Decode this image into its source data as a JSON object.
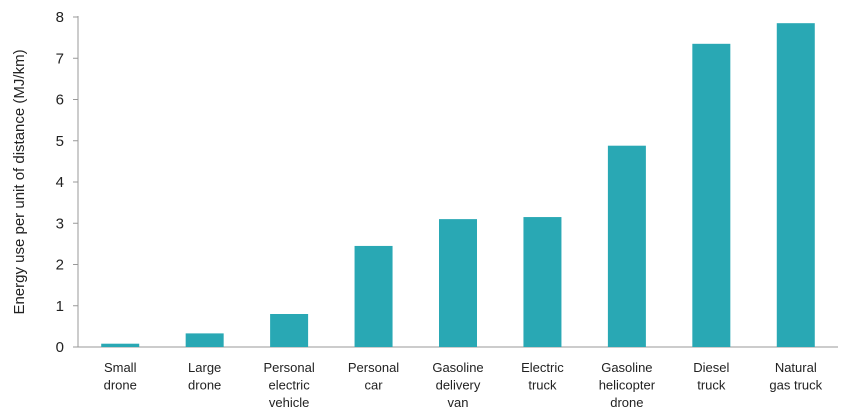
{
  "chart_data": {
    "type": "bar",
    "categories": [
      [
        "Small",
        "drone"
      ],
      [
        "Large",
        "drone"
      ],
      [
        "Personal",
        "electric",
        "vehicle"
      ],
      [
        "Personal",
        "car"
      ],
      [
        "Gasoline",
        "delivery",
        "van"
      ],
      [
        "Electric",
        "truck"
      ],
      [
        "Gasoline",
        "helicopter",
        "drone"
      ],
      [
        "Diesel",
        "truck"
      ],
      [
        "Natural",
        "gas truck"
      ]
    ],
    "values": [
      0.08,
      0.33,
      0.8,
      2.45,
      3.1,
      3.15,
      4.88,
      7.35,
      7.85
    ],
    "ylabel": "Energy use per unit of distance (MJ/km)",
    "ylim": [
      0,
      8
    ],
    "yticks": [
      "0",
      "1",
      "2",
      "3",
      "4",
      "5",
      "6",
      "7",
      "8"
    ],
    "bar_color": "#29a8b4",
    "axis_color": "#999999",
    "grid": false
  }
}
